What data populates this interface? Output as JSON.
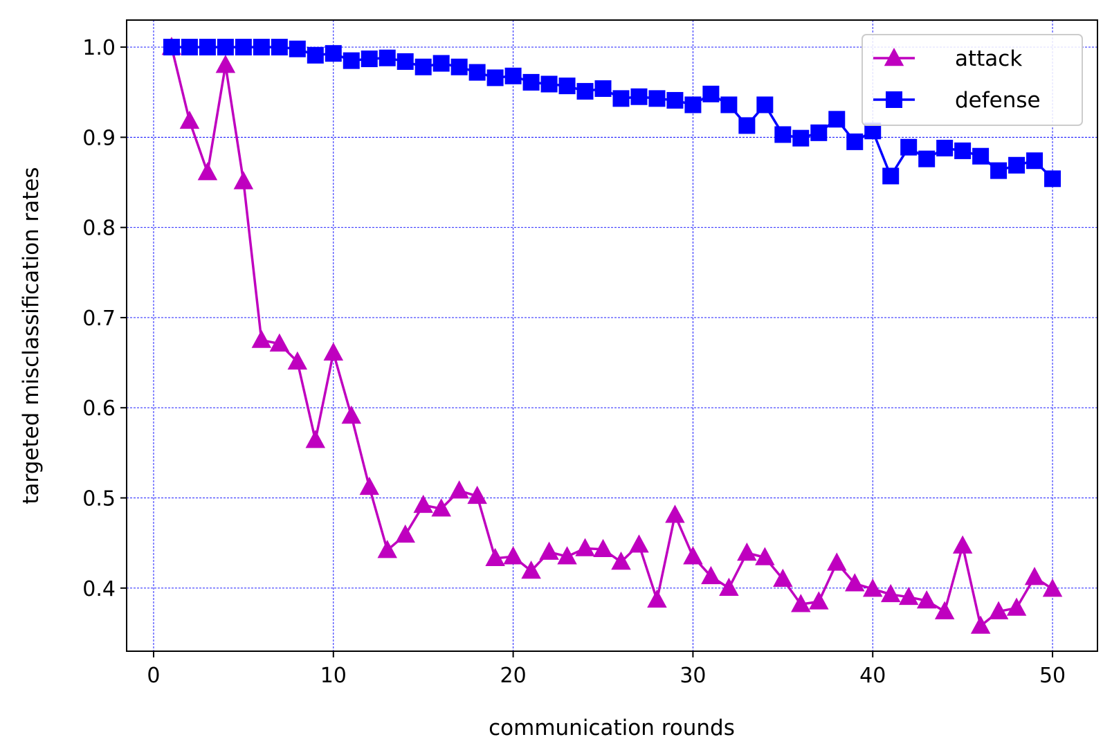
{
  "chart_data": {
    "type": "line",
    "title": "",
    "xlabel": "communication rounds",
    "ylabel": "targeted misclassification rates",
    "xlim": [
      -1.5,
      52.5
    ],
    "ylim": [
      0.33,
      1.03
    ],
    "xticks": [
      0,
      10,
      20,
      30,
      40,
      50
    ],
    "yticks": [
      0.4,
      0.5,
      0.6,
      0.7,
      0.8,
      0.9,
      1.0
    ],
    "xtick_labels": [
      "0",
      "10",
      "20",
      "30",
      "40",
      "50"
    ],
    "ytick_labels": [
      "0.4",
      "0.5",
      "0.6",
      "0.7",
      "0.8",
      "0.9",
      "1.0"
    ],
    "grid": true,
    "legend_position": "top-right",
    "x": [
      1,
      2,
      3,
      4,
      5,
      6,
      7,
      8,
      9,
      10,
      11,
      12,
      13,
      14,
      15,
      16,
      17,
      18,
      19,
      20,
      21,
      22,
      23,
      24,
      25,
      26,
      27,
      28,
      29,
      30,
      31,
      32,
      33,
      34,
      35,
      36,
      37,
      38,
      39,
      40,
      41,
      42,
      43,
      44,
      45,
      46,
      47,
      48,
      49,
      50
    ],
    "series": [
      {
        "name": "attack",
        "color": "#bf00bf",
        "marker": "triangle",
        "values": [
          1.0,
          0.918,
          0.861,
          0.98,
          0.851,
          0.675,
          0.671,
          0.651,
          0.564,
          0.661,
          0.591,
          0.512,
          0.442,
          0.459,
          0.492,
          0.488,
          0.508,
          0.502,
          0.433,
          0.435,
          0.419,
          0.44,
          0.435,
          0.444,
          0.443,
          0.429,
          0.448,
          0.387,
          0.481,
          0.435,
          0.413,
          0.4,
          0.439,
          0.434,
          0.41,
          0.382,
          0.385,
          0.428,
          0.405,
          0.399,
          0.393,
          0.39,
          0.386,
          0.374,
          0.447,
          0.358,
          0.374,
          0.378,
          0.412,
          0.399
        ]
      },
      {
        "name": "defense",
        "color": "#0000ff",
        "marker": "square",
        "values": [
          1.0,
          1.0,
          1.0,
          1.0,
          1.0,
          1.0,
          1.0,
          0.998,
          0.991,
          0.993,
          0.985,
          0.987,
          0.988,
          0.984,
          0.978,
          0.982,
          0.978,
          0.972,
          0.966,
          0.968,
          0.961,
          0.959,
          0.957,
          0.951,
          0.954,
          0.943,
          0.945,
          0.943,
          0.941,
          0.936,
          0.948,
          0.936,
          0.913,
          0.936,
          0.903,
          0.899,
          0.905,
          0.92,
          0.895,
          0.907,
          0.857,
          0.889,
          0.876,
          0.888,
          0.885,
          0.879,
          0.863,
          0.869,
          0.874,
          0.854
        ]
      }
    ]
  }
}
